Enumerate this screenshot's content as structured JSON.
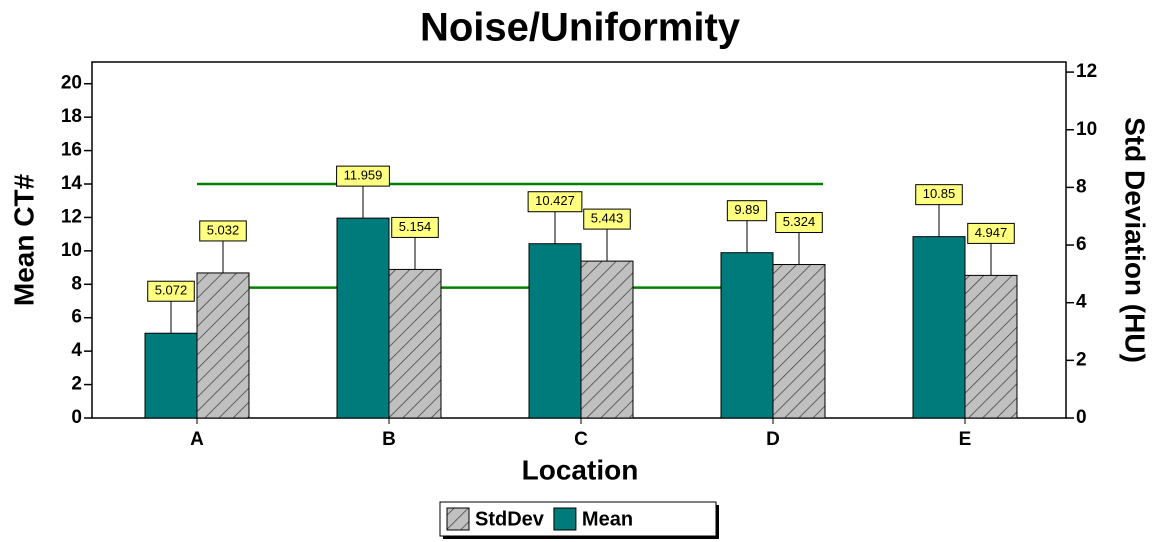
{
  "chart_data": {
    "type": "bar",
    "title": "Noise/Uniformity",
    "x_label": "Location",
    "y_label": "Mean CT#",
    "y2_label": "Std Deviation (HU)",
    "categories": [
      "A",
      "B",
      "C",
      "D",
      "E"
    ],
    "series": [
      {
        "name": "Mean",
        "color": "#007b7b",
        "values": [
          5.072,
          11.959,
          10.427,
          9.89,
          10.85
        ]
      },
      {
        "name": "StdDev",
        "color": "#c0c0c0",
        "hatch": true,
        "axis": "y2",
        "values": [
          5.032,
          5.154,
          5.443,
          5.324,
          4.947
        ]
      }
    ],
    "legend_order": [
      1,
      0
    ],
    "reference_lines": [
      {
        "value": 14,
        "color": "#008000"
      },
      {
        "value": 7.8,
        "color": "#008000"
      }
    ],
    "ylim": [
      0,
      21.3
    ],
    "yticks": [
      0,
      2,
      4,
      6,
      8,
      10,
      12,
      14,
      16,
      18,
      20
    ],
    "y2lim": [
      0,
      12.35
    ],
    "y2ticks": [
      0,
      2,
      4,
      6,
      8,
      10,
      12
    ],
    "label_fill": "#ffff80"
  }
}
